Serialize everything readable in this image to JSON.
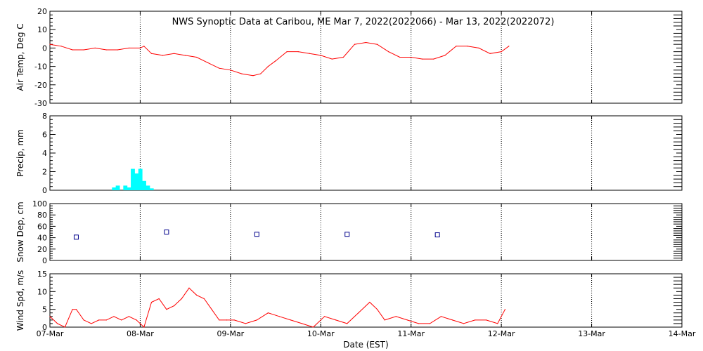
{
  "colors": {
    "temp": "#ff0000",
    "precip": "#00ffff",
    "snow": "#00008b",
    "axis": "#000000",
    "grid": "#000000",
    "background": "#ffffff"
  },
  "chart_data": [
    {
      "type": "line",
      "id": "air-temp",
      "title": "NWS Synoptic Data at Caribou, ME   Mar  7, 2022(2022066) - Mar 13, 2022(2022072)",
      "xlabel": "",
      "ylabel": "Air Temp, Deg C",
      "xlim": [
        "2022-03-07T00:00",
        "2022-03-14T00:00"
      ],
      "ylim": [
        -30,
        20
      ],
      "yticks": [
        "-30",
        "-20",
        "-10",
        "0",
        "10",
        "20"
      ],
      "series": [
        {
          "x": [
            "2022-03-07T00:00",
            "2022-03-07T03:00",
            "2022-03-07T06:00",
            "2022-03-07T09:00",
            "2022-03-07T12:00",
            "2022-03-07T15:00",
            "2022-03-07T18:00",
            "2022-03-07T21:00",
            "2022-03-08T00:00",
            "2022-03-08T01:00",
            "2022-03-08T03:00",
            "2022-03-08T06:00",
            "2022-03-08T09:00",
            "2022-03-08T12:00",
            "2022-03-08T15:00",
            "2022-03-08T18:00",
            "2022-03-08T21:00",
            "2022-03-09T00:00",
            "2022-03-09T03:00",
            "2022-03-09T06:00",
            "2022-03-09T08:00",
            "2022-03-09T10:00",
            "2022-03-09T12:00",
            "2022-03-09T15:00",
            "2022-03-09T18:00",
            "2022-03-09T21:00",
            "2022-03-10T00:00",
            "2022-03-10T03:00",
            "2022-03-10T06:00",
            "2022-03-10T09:00",
            "2022-03-10T12:00",
            "2022-03-10T15:00",
            "2022-03-10T18:00",
            "2022-03-10T21:00",
            "2022-03-11T00:00",
            "2022-03-11T03:00",
            "2022-03-11T06:00",
            "2022-03-11T09:00",
            "2022-03-11T12:00",
            "2022-03-11T15:00",
            "2022-03-11T18:00",
            "2022-03-11T21:00",
            "2022-03-12T00:00",
            "2022-03-12T02:00"
          ],
          "values": [
            2,
            1,
            -1,
            -1,
            0,
            -1,
            -1,
            0,
            0,
            1,
            -3,
            -4,
            -3,
            -4,
            -5,
            -8,
            -11,
            -12,
            -14,
            -15,
            -14,
            -10,
            -7,
            -2,
            -2,
            -3,
            -4,
            -6,
            -5,
            2,
            3,
            2,
            -2,
            -5,
            -5,
            -6,
            -6,
            -4,
            1,
            1,
            0,
            -3,
            -2,
            1
          ]
        }
      ]
    },
    {
      "type": "bar",
      "id": "precip",
      "ylabel": "Precip, mm",
      "xlim": [
        "2022-03-07T00:00",
        "2022-03-14T00:00"
      ],
      "ylim": [
        0,
        8
      ],
      "yticks": [
        "0",
        "2",
        "4",
        "6",
        "8"
      ],
      "x": [
        "2022-03-07T17:00",
        "2022-03-07T18:00",
        "2022-03-07T19:00",
        "2022-03-07T20:00",
        "2022-03-07T21:00",
        "2022-03-07T22:00",
        "2022-03-07T23:00",
        "2022-03-08T00:00",
        "2022-03-08T01:00",
        "2022-03-08T02:00",
        "2022-03-08T03:00"
      ],
      "values": [
        0.3,
        0.5,
        0,
        0.5,
        0.3,
        2.3,
        1.8,
        2.3,
        1.0,
        0.5,
        0.2
      ]
    },
    {
      "type": "scatter",
      "id": "snow-depth",
      "ylabel": "Snow Dep, cm",
      "xlim": [
        "2022-03-07T00:00",
        "2022-03-14T00:00"
      ],
      "ylim": [
        0,
        100
      ],
      "yticks": [
        "0",
        "20",
        "40",
        "60",
        "80",
        "100"
      ],
      "x": [
        "2022-03-07T07:00",
        "2022-03-08T07:00",
        "2022-03-09T07:00",
        "2022-03-10T07:00",
        "2022-03-11T07:00"
      ],
      "values": [
        41,
        50,
        46,
        46,
        45
      ]
    },
    {
      "type": "line",
      "id": "wind-speed",
      "ylabel": "Wind Spd, m/s",
      "xlabel": "Date (EST)",
      "xlim": [
        "2022-03-07T00:00",
        "2022-03-14T00:00"
      ],
      "ylim": [
        0,
        15
      ],
      "yticks": [
        "0",
        "5",
        "10",
        "15"
      ],
      "xticks": [
        "07-Mar",
        "08-Mar",
        "09-Mar",
        "10-Mar",
        "11-Mar",
        "12-Mar",
        "13-Mar",
        "14-Mar"
      ],
      "series": [
        {
          "x": [
            "2022-03-07T00:00",
            "2022-03-07T02:00",
            "2022-03-07T04:00",
            "2022-03-07T06:00",
            "2022-03-07T07:00",
            "2022-03-07T09:00",
            "2022-03-07T11:00",
            "2022-03-07T13:00",
            "2022-03-07T15:00",
            "2022-03-07T17:00",
            "2022-03-07T19:00",
            "2022-03-07T21:00",
            "2022-03-07T23:00",
            "2022-03-08T01:00",
            "2022-03-08T03:00",
            "2022-03-08T05:00",
            "2022-03-08T07:00",
            "2022-03-08T09:00",
            "2022-03-08T11:00",
            "2022-03-08T13:00",
            "2022-03-08T15:00",
            "2022-03-08T17:00",
            "2022-03-08T19:00",
            "2022-03-08T21:00",
            "2022-03-08T23:00",
            "2022-03-09T01:00",
            "2022-03-09T04:00",
            "2022-03-09T07:00",
            "2022-03-09T10:00",
            "2022-03-09T13:00",
            "2022-03-09T16:00",
            "2022-03-09T19:00",
            "2022-03-09T22:00",
            "2022-03-10T01:00",
            "2022-03-10T04:00",
            "2022-03-10T07:00",
            "2022-03-10T10:00",
            "2022-03-10T13:00",
            "2022-03-10T15:00",
            "2022-03-10T17:00",
            "2022-03-10T20:00",
            "2022-03-10T23:00",
            "2022-03-11T02:00",
            "2022-03-11T05:00",
            "2022-03-11T08:00",
            "2022-03-11T11:00",
            "2022-03-11T14:00",
            "2022-03-11T17:00",
            "2022-03-11T20:00",
            "2022-03-11T23:00",
            "2022-03-12T01:00"
          ],
          "values": [
            3,
            1,
            0,
            5,
            5,
            2,
            1,
            2,
            2,
            3,
            2,
            3,
            2,
            0,
            7,
            8,
            5,
            6,
            8,
            11,
            9,
            8,
            5,
            2,
            2,
            2,
            1,
            2,
            4,
            3,
            2,
            1,
            0,
            3,
            2,
            1,
            4,
            7,
            5,
            2,
            3,
            2,
            1,
            1,
            3,
            2,
            1,
            2,
            2,
            1,
            5
          ]
        }
      ]
    }
  ]
}
